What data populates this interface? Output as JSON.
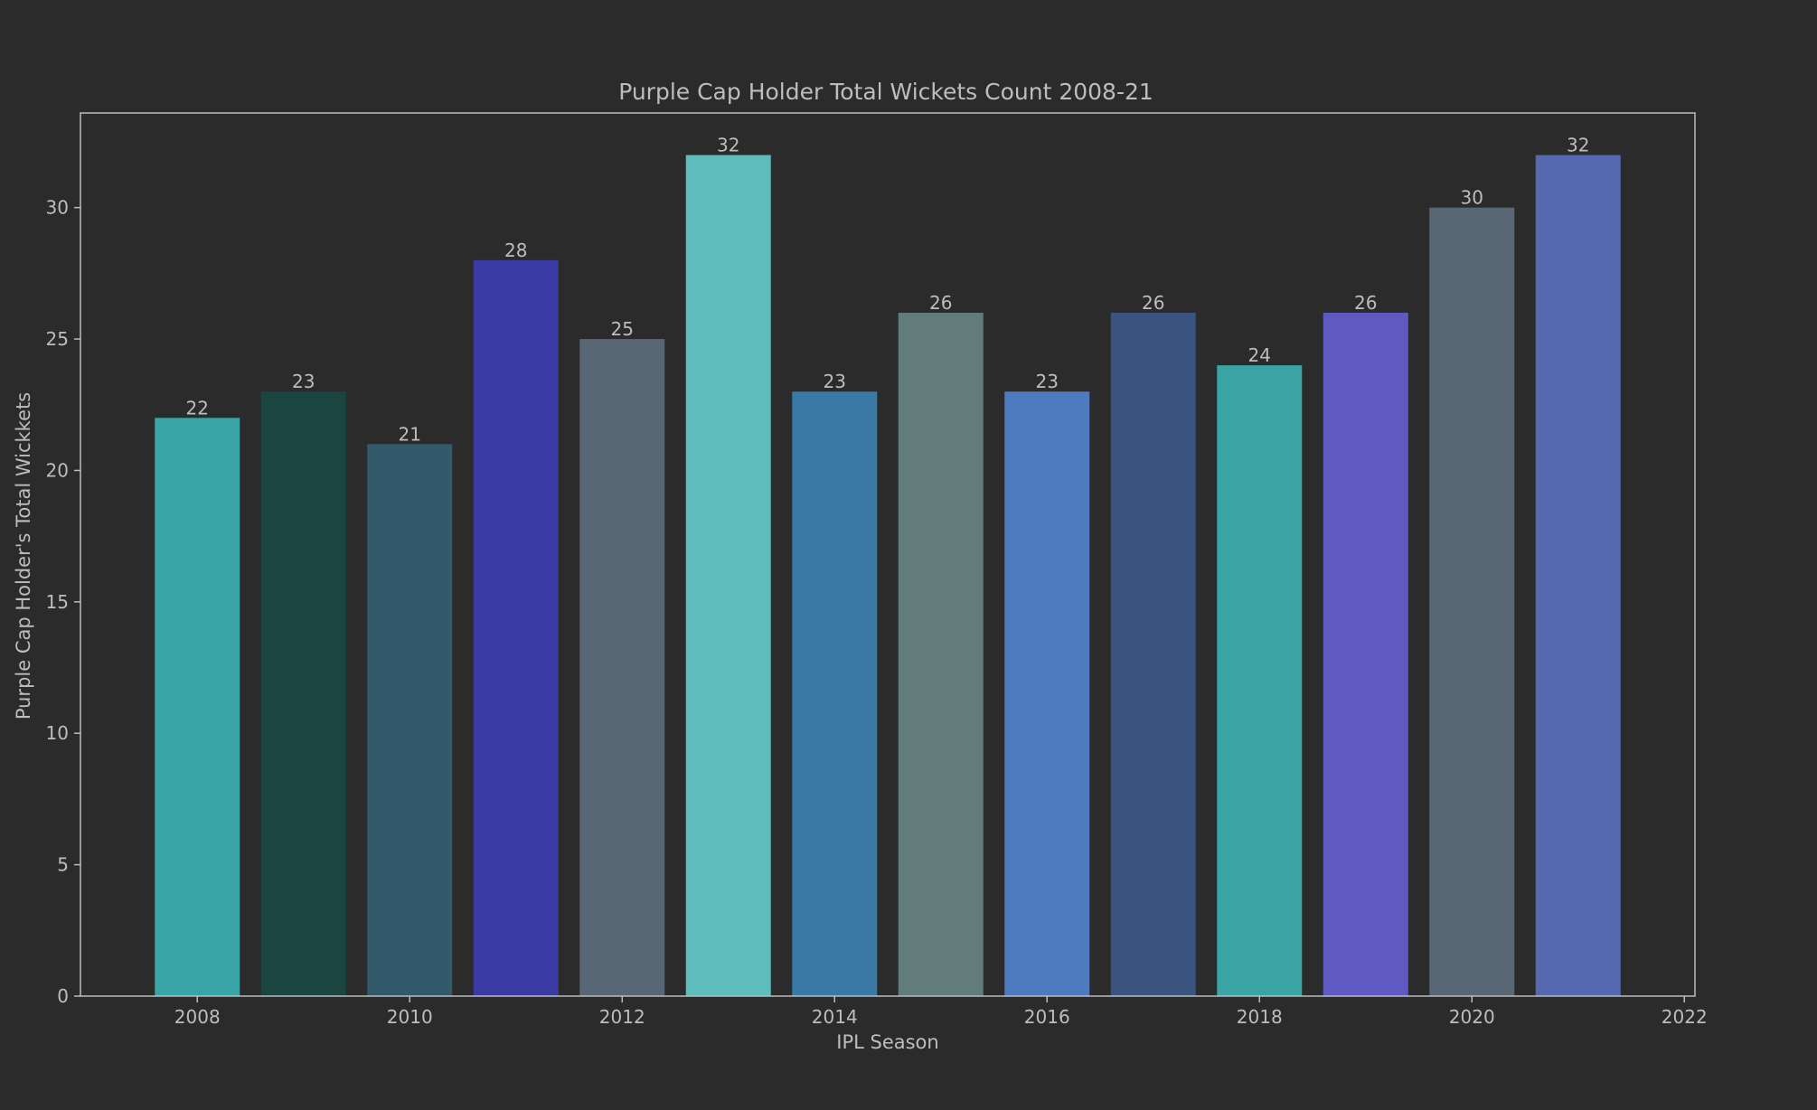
{
  "chart_data": {
    "type": "bar",
    "title": "Purple Cap Holder Total Wickets Count 2008-21",
    "xlabel": "IPL Season",
    "ylabel": "Purple Cap Holder's Total Wickkets",
    "x": [
      2008,
      2009,
      2010,
      2011,
      2012,
      2013,
      2014,
      2015,
      2016,
      2017,
      2018,
      2019,
      2020,
      2021
    ],
    "values": [
      22,
      23,
      21,
      28,
      25,
      32,
      23,
      26,
      23,
      26,
      24,
      26,
      30,
      32
    ],
    "data_labels": [
      "22",
      "23",
      "21",
      "28",
      "25",
      "32",
      "23",
      "26",
      "23",
      "26",
      "24",
      "26",
      "30",
      "32"
    ],
    "bar_colors": [
      "#3aa5a6",
      "#1b4541",
      "#325a6b",
      "#3c3aa3",
      "#596775",
      "#5fbcbd",
      "#3a79a5",
      "#627c7c",
      "#4e7bc0",
      "#3a547f",
      "#3ba5a6",
      "#5f5ac2",
      "#596775",
      "#5669b0"
    ],
    "xlim": [
      2006.9,
      2022.1
    ],
    "ylim": [
      0,
      33.6
    ],
    "xticks": [
      2008,
      2010,
      2012,
      2014,
      2016,
      2018,
      2020,
      2022
    ],
    "xtick_labels": [
      "2008",
      "2010",
      "2012",
      "2014",
      "2016",
      "2018",
      "2020",
      "2022"
    ],
    "yticks": [
      0,
      5,
      10,
      15,
      20,
      25,
      30
    ],
    "ytick_labels": [
      "0",
      "5",
      "10",
      "15",
      "20",
      "25",
      "30"
    ],
    "grid": false,
    "legend": "none",
    "background": "#2b2b2b",
    "text_color": "#bdbdbd",
    "axis_color": "#bdbdbd"
  }
}
